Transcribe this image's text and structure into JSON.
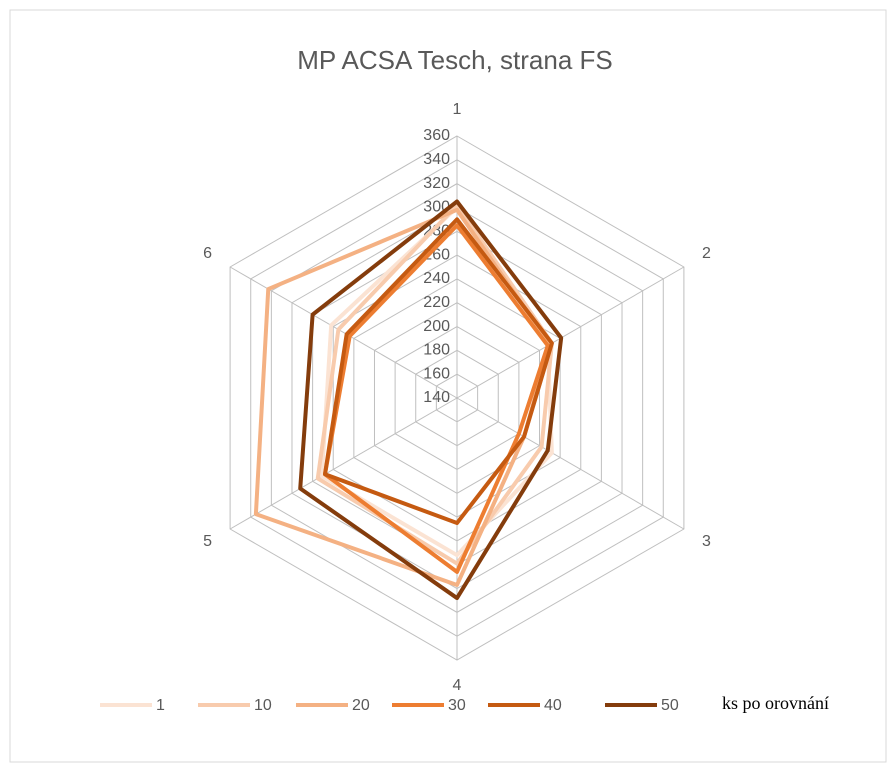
{
  "chart_data": {
    "type": "radar",
    "title": "MP ACSA Tesch, strana FS",
    "categories": [
      "1",
      "2",
      "3",
      "4",
      "5",
      "6"
    ],
    "series": [
      {
        "name": "1",
        "color": "#fbe3d3",
        "values": [
          300,
          228,
          232,
          272,
          271,
          262
        ]
      },
      {
        "name": "10",
        "color": "#f8cbad",
        "values": [
          302,
          232,
          222,
          279,
          275,
          255
        ]
      },
      {
        "name": "20",
        "color": "#f4b183",
        "values": [
          298,
          230,
          205,
          297,
          335,
          323
        ]
      },
      {
        "name": "30",
        "color": "#ed7d31",
        "values": [
          285,
          228,
          200,
          286,
          268,
          244
        ]
      },
      {
        "name": "40",
        "color": "#c55a11",
        "values": [
          290,
          232,
          205,
          245,
          268,
          247
        ]
      },
      {
        "name": "50",
        "color": "#843c0c",
        "values": [
          305,
          241,
          228,
          308,
          292,
          280
        ]
      }
    ],
    "ylim": [
      140,
      360
    ],
    "yticks": [
      140,
      160,
      180,
      200,
      220,
      240,
      260,
      280,
      300,
      320,
      340,
      360
    ],
    "grid": true,
    "legend": "bottom",
    "annotation": "ks po orovnání"
  }
}
